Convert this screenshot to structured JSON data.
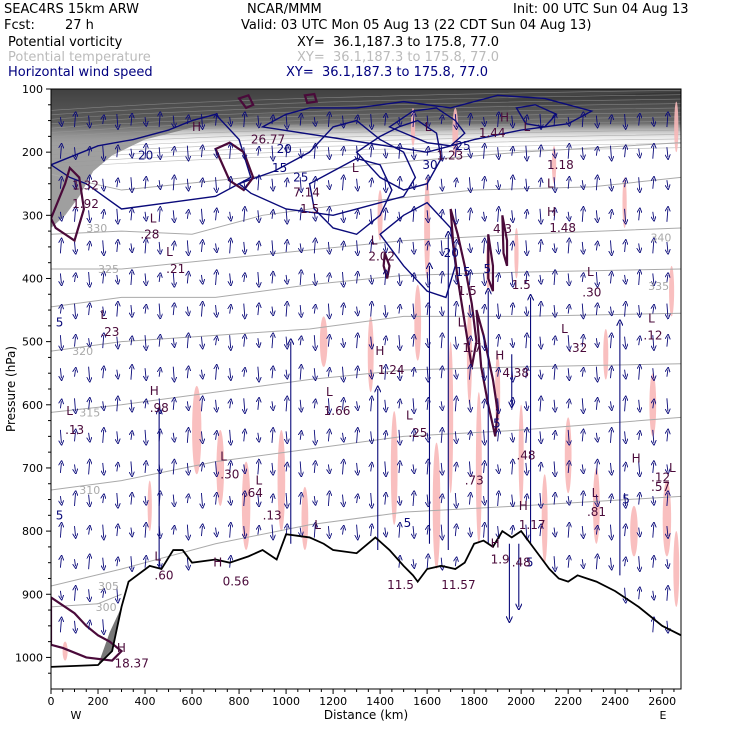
{
  "header": {
    "model": "SEAC4RS 15km ARW",
    "center": "NCAR/MMM",
    "init": "Init: 00 UTC Sun 04 Aug 13",
    "fcst_label": "Fcst:",
    "fcst_value": "27 h",
    "valid": "Valid: 03 UTC Mon 05 Aug 13 (22 CDT Sun 04 Aug 13)"
  },
  "legend": [
    {
      "label": "Potential vorticity",
      "xy": "XY=  36.1,187.3 to 175.8, 77.0",
      "color": "#000000"
    },
    {
      "label": "Potential temperature",
      "xy": "XY=  36.1,187.3 to 175.8, 77.0",
      "color": "#bbbbbb"
    },
    {
      "label": "Horizontal wind speed",
      "xy": "XY=  36.1,187.3 to 175.8, 77.0",
      "color": "#00007f"
    }
  ],
  "colors": {
    "pv": "#4a0a3a",
    "theta": "#aaaaaa",
    "wind": "#0a0a7a",
    "shade": "#f8b8b8",
    "terrain": "#000000",
    "strat": "#3a3a3a"
  },
  "chart_data": {
    "type": "cross-section",
    "title": "",
    "xlabel": "Distance (km)",
    "ylabel": "Pressure (hPa)",
    "xlim": [
      0,
      2680
    ],
    "ylim": [
      1050,
      100
    ],
    "x_ticks": [
      "0",
      "200",
      "400",
      "600",
      "800",
      "1000",
      "1200",
      "1400",
      "1600",
      "1800",
      "2000",
      "2200",
      "2400",
      "2600"
    ],
    "y_ticks": [
      "100",
      "200",
      "300",
      "400",
      "500",
      "600",
      "700",
      "800",
      "900",
      "1000"
    ],
    "x_end_labels": {
      "left": "W",
      "right": "E"
    },
    "terrain": [
      [
        0,
        1015
      ],
      [
        200,
        1012
      ],
      [
        260,
        990
      ],
      [
        300,
        920
      ],
      [
        330,
        880
      ],
      [
        420,
        855
      ],
      [
        470,
        860
      ],
      [
        520,
        830
      ],
      [
        560,
        830
      ],
      [
        600,
        850
      ],
      [
        700,
        845
      ],
      [
        760,
        850
      ],
      [
        840,
        840
      ],
      [
        900,
        830
      ],
      [
        960,
        845
      ],
      [
        1000,
        805
      ],
      [
        1100,
        810
      ],
      [
        1160,
        820
      ],
      [
        1200,
        830
      ],
      [
        1300,
        835
      ],
      [
        1380,
        810
      ],
      [
        1440,
        830
      ],
      [
        1500,
        855
      ],
      [
        1540,
        870
      ],
      [
        1560,
        880
      ],
      [
        1600,
        860
      ],
      [
        1660,
        855
      ],
      [
        1720,
        860
      ],
      [
        1760,
        850
      ],
      [
        1800,
        820
      ],
      [
        1840,
        815
      ],
      [
        1880,
        825
      ],
      [
        1920,
        800
      ],
      [
        1960,
        810
      ],
      [
        2000,
        800
      ],
      [
        2040,
        820
      ],
      [
        2080,
        840
      ],
      [
        2120,
        860
      ],
      [
        2160,
        875
      ],
      [
        2200,
        880
      ],
      [
        2240,
        870
      ],
      [
        2280,
        875
      ],
      [
        2320,
        880
      ],
      [
        2400,
        895
      ],
      [
        2500,
        920
      ],
      [
        2600,
        950
      ],
      [
        2680,
        965
      ]
    ],
    "theta_labels": [
      {
        "x": 150,
        "p": 320,
        "text": "330"
      },
      {
        "x": 200,
        "p": 385,
        "text": "325"
      },
      {
        "x": 90,
        "p": 515,
        "text": "320"
      },
      {
        "x": 120,
        "p": 612,
        "text": "315"
      },
      {
        "x": 120,
        "p": 735,
        "text": "310"
      },
      {
        "x": 200,
        "p": 887,
        "text": "305"
      },
      {
        "x": 190,
        "p": 920,
        "text": "300"
      },
      {
        "x": 2550,
        "p": 335,
        "text": "340"
      },
      {
        "x": 2540,
        "p": 412,
        "text": "335"
      },
      {
        "x": 2630,
        "p": 497,
        "text": "330"
      },
      {
        "x": 2630,
        "p": 205,
        "text": "335"
      }
    ],
    "wind_labels": [
      {
        "x": 370,
        "p": 205,
        "text": "20"
      },
      {
        "x": 960,
        "p": 195,
        "text": "20"
      },
      {
        "x": 1030,
        "p": 240,
        "text": "25"
      },
      {
        "x": 940,
        "p": 225,
        "text": "15"
      },
      {
        "x": 1580,
        "p": 220,
        "text": "30"
      },
      {
        "x": 1720,
        "p": 190,
        "text": "25"
      },
      {
        "x": 1670,
        "p": 360,
        "text": "20"
      },
      {
        "x": 1720,
        "p": 390,
        "text": "15"
      },
      {
        "x": 1840,
        "p": 385,
        "text": "5"
      },
      {
        "x": 20,
        "p": 470,
        "text": "5"
      },
      {
        "x": 20,
        "p": 775,
        "text": "5"
      },
      {
        "x": 1500,
        "p": 787,
        "text": "5"
      },
      {
        "x": 2430,
        "p": 750,
        "text": "5"
      },
      {
        "x": 2020,
        "p": 850,
        "text": "5"
      },
      {
        "x": 1880,
        "p": 630,
        "text": "5"
      }
    ],
    "pv_labels": [
      {
        "x": 90,
        "p": 253,
        "text": "1.32"
      },
      {
        "x": 90,
        "p": 282,
        "text": "1.92"
      },
      {
        "x": 380,
        "p": 330,
        "text": ".28"
      },
      {
        "x": 490,
        "p": 385,
        "text": ".21"
      },
      {
        "x": 210,
        "p": 485,
        "text": ".23"
      },
      {
        "x": 60,
        "p": 640,
        "text": ".13"
      },
      {
        "x": 1030,
        "p": 264,
        "text": "7.14"
      },
      {
        "x": 1060,
        "p": 290,
        "text": "1.5"
      },
      {
        "x": 1820,
        "p": 170,
        "text": "1.44"
      },
      {
        "x": 2110,
        "p": 220,
        "text": "1.18"
      },
      {
        "x": 1640,
        "p": 205,
        "text": "1.23"
      },
      {
        "x": 1350,
        "p": 365,
        "text": "2.02"
      },
      {
        "x": 1730,
        "p": 420,
        "text": "1.5"
      },
      {
        "x": 1960,
        "p": 410,
        "text": "1.5"
      },
      {
        "x": 1750,
        "p": 510,
        "text": "1.7"
      },
      {
        "x": 1920,
        "p": 550,
        "text": "4.38"
      },
      {
        "x": 1880,
        "p": 322,
        "text": "4.3"
      },
      {
        "x": 2120,
        "p": 320,
        "text": "1.48"
      },
      {
        "x": 2260,
        "p": 422,
        "text": ".30"
      },
      {
        "x": 2520,
        "p": 490,
        "text": ".12"
      },
      {
        "x": 2200,
        "p": 510,
        "text": ".32"
      },
      {
        "x": 2600,
        "p": 715,
        "text": ".12"
      },
      {
        "x": 2750,
        "p": 730,
        "text": ".57"
      },
      {
        "x": 1390,
        "p": 545,
        "text": "1.24"
      },
      {
        "x": 1160,
        "p": 610,
        "text": "1.66"
      },
      {
        "x": 1520,
        "p": 645,
        "text": ".25"
      },
      {
        "x": 1980,
        "p": 680,
        "text": ".48"
      },
      {
        "x": 1760,
        "p": 720,
        "text": ".73"
      },
      {
        "x": 2280,
        "p": 770,
        "text": ".81"
      },
      {
        "x": 1990,
        "p": 790,
        "text": "1.17"
      },
      {
        "x": 1870,
        "p": 845,
        "text": "1.9"
      },
      {
        "x": 1960,
        "p": 850,
        "text": ".48"
      },
      {
        "x": 1430,
        "p": 885,
        "text": "11.5"
      },
      {
        "x": 1660,
        "p": 885,
        "text": "11.57"
      },
      {
        "x": 420,
        "p": 605,
        "text": ".98"
      },
      {
        "x": 720,
        "p": 710,
        "text": ".30"
      },
      {
        "x": 820,
        "p": 740,
        "text": ".64"
      },
      {
        "x": 900,
        "p": 775,
        "text": ".13"
      },
      {
        "x": 440,
        "p": 870,
        "text": ".60"
      },
      {
        "x": 730,
        "p": 880,
        "text": "0.56"
      },
      {
        "x": 270,
        "p": 1010,
        "text": "18.37"
      },
      {
        "x": 850,
        "p": 180,
        "text": "26.77"
      }
    ],
    "hl_markers": [
      {
        "x": 600,
        "p": 160,
        "letter": "H"
      },
      {
        "x": 1910,
        "p": 145,
        "letter": "H"
      },
      {
        "x": 2110,
        "p": 250,
        "letter": "L"
      },
      {
        "x": 2110,
        "p": 295,
        "letter": "H"
      },
      {
        "x": 420,
        "p": 305,
        "letter": "L"
      },
      {
        "x": 490,
        "p": 358,
        "letter": "L"
      },
      {
        "x": 1280,
        "p": 225,
        "letter": "L"
      },
      {
        "x": 1360,
        "p": 340,
        "letter": "L"
      },
      {
        "x": 2280,
        "p": 390,
        "letter": "L"
      },
      {
        "x": 2540,
        "p": 463,
        "letter": "L"
      },
      {
        "x": 1380,
        "p": 515,
        "letter": "H"
      },
      {
        "x": 1890,
        "p": 522,
        "letter": "H"
      },
      {
        "x": 2170,
        "p": 480,
        "letter": "L"
      },
      {
        "x": 210,
        "p": 458,
        "letter": "L"
      },
      {
        "x": 65,
        "p": 610,
        "letter": "L"
      },
      {
        "x": 420,
        "p": 578,
        "letter": "H"
      },
      {
        "x": 1170,
        "p": 580,
        "letter": "L"
      },
      {
        "x": 1510,
        "p": 617,
        "letter": "L"
      },
      {
        "x": 720,
        "p": 682,
        "letter": "L"
      },
      {
        "x": 870,
        "p": 720,
        "letter": "L"
      },
      {
        "x": 2300,
        "p": 740,
        "letter": "L"
      },
      {
        "x": 2720,
        "p": 700,
        "letter": "L"
      },
      {
        "x": 2470,
        "p": 685,
        "letter": "H"
      },
      {
        "x": 440,
        "p": 840,
        "letter": "L"
      },
      {
        "x": 690,
        "p": 850,
        "letter": "H"
      },
      {
        "x": 280,
        "p": 985,
        "letter": "H"
      },
      {
        "x": 1990,
        "p": 760,
        "letter": "H"
      },
      {
        "x": 1870,
        "p": 820,
        "letter": "H"
      },
      {
        "x": 1120,
        "p": 790,
        "letter": "L"
      },
      {
        "x": 2010,
        "p": 160,
        "letter": "L"
      },
      {
        "x": 1590,
        "p": 160,
        "letter": "L"
      },
      {
        "x": 1730,
        "p": 470,
        "letter": "L"
      }
    ]
  }
}
